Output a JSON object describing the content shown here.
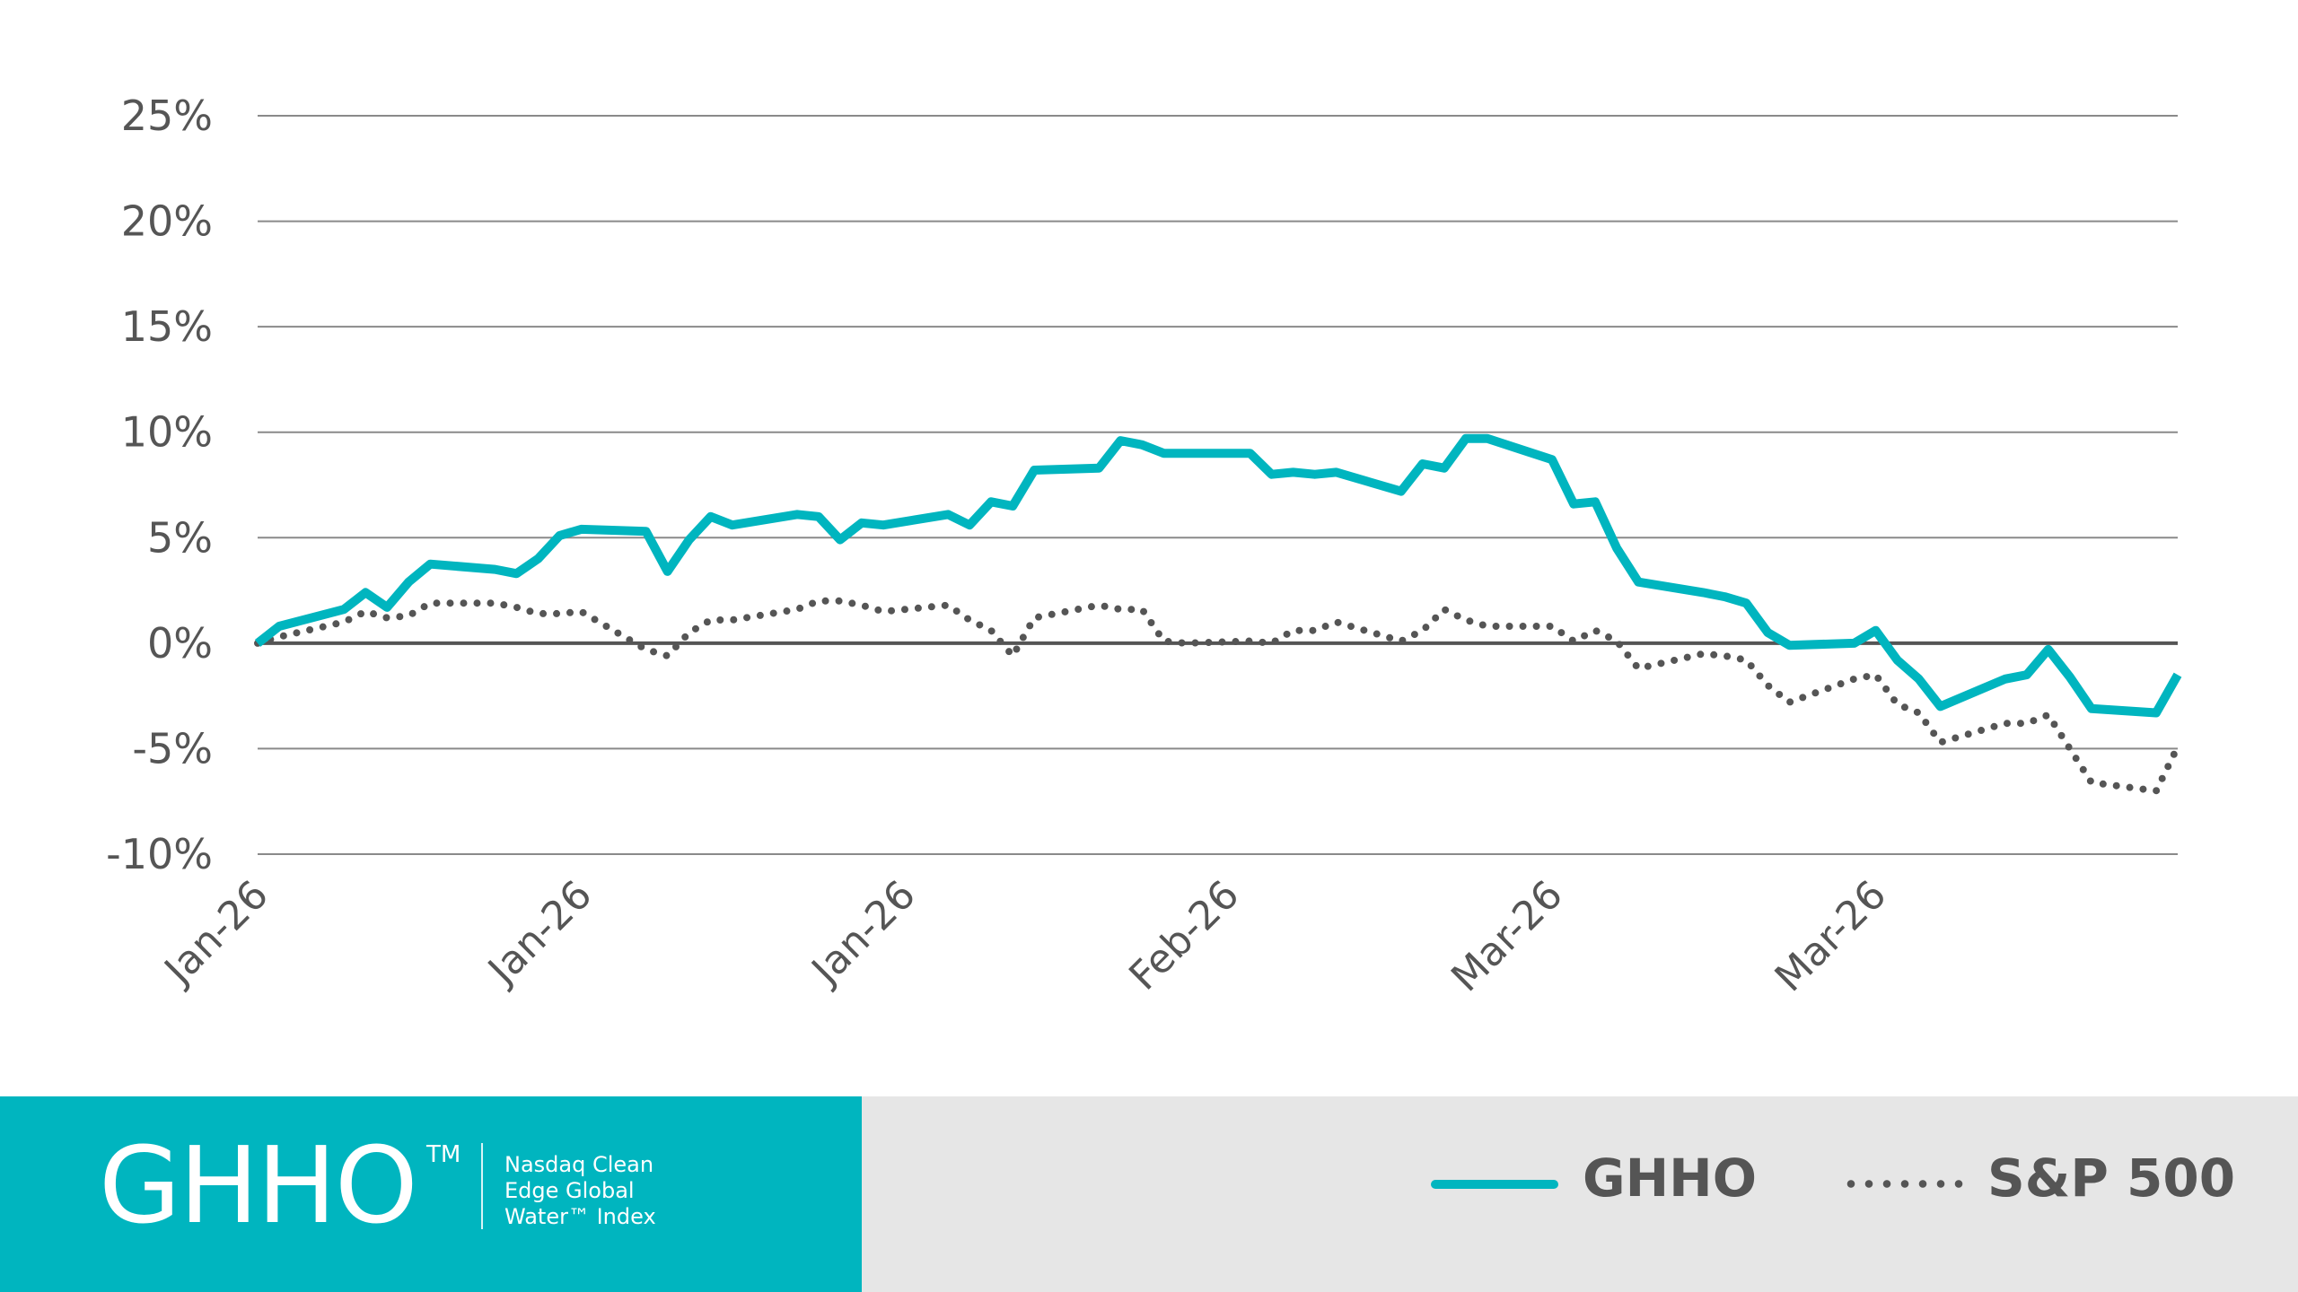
{
  "chart_data": {
    "type": "line",
    "title": "",
    "xlabel": "",
    "ylabel": "",
    "ylim": [
      -10,
      25
    ],
    "y_ticks": [
      25,
      20,
      15,
      10,
      5,
      0,
      -5,
      -10
    ],
    "y_tick_labels": [
      "25%",
      "20%",
      "15%",
      "10%",
      "5%",
      "0%",
      "-5%",
      "-10%"
    ],
    "x_range": [
      0,
      89
    ],
    "x_ticks": [
      0,
      15,
      30,
      45,
      60,
      75
    ],
    "x_tick_labels": [
      "Jan-26",
      "Jan-26",
      "Jan-26",
      "Feb-26",
      "Mar-26",
      "Mar-26"
    ],
    "grid": true,
    "legend": "bottom-right",
    "series": [
      {
        "name": "GHHO",
        "color": "#00B5BF",
        "style": "solid",
        "x": [
          0,
          1,
          4,
          5,
          6,
          7,
          8,
          11,
          12,
          13,
          14,
          15,
          18,
          19,
          20,
          21,
          22,
          25,
          26,
          27,
          28,
          29,
          32,
          33,
          34,
          35,
          36,
          39,
          40,
          41,
          42,
          43,
          46,
          47,
          48,
          49,
          50,
          53,
          54,
          55,
          56,
          57,
          60,
          61,
          62,
          63,
          64,
          67,
          68,
          69,
          70,
          71,
          74,
          75,
          76,
          77,
          78,
          81,
          82,
          83,
          84,
          85,
          88,
          89
        ],
        "values": [
          0,
          0.8,
          1.6,
          2.4,
          1.7,
          2.9,
          3.75,
          3.5,
          3.3,
          4.0,
          5.1,
          5.4,
          5.3,
          3.4,
          4.9,
          6.0,
          5.6,
          6.1,
          6.0,
          4.9,
          5.7,
          5.6,
          6.1,
          5.6,
          6.7,
          6.5,
          8.2,
          8.3,
          9.6,
          9.4,
          9.0,
          9.0,
          9.0,
          8.0,
          8.1,
          8.0,
          8.1,
          7.2,
          8.5,
          8.3,
          9.7,
          9.7,
          8.7,
          6.6,
          6.7,
          4.5,
          2.9,
          2.4,
          2.2,
          1.9,
          0.5,
          -0.1,
          0.0,
          0.6,
          -0.8,
          -1.7,
          -3.0,
          -1.7,
          -1.5,
          -0.3,
          -1.6,
          -3.1,
          -3.3,
          -1.5
        ]
      },
      {
        "name": "S&P 500",
        "color": "#555555",
        "style": "dotted",
        "x": [
          0,
          1,
          4,
          5,
          6,
          7,
          8,
          11,
          12,
          13,
          14,
          15,
          18,
          19,
          20,
          21,
          22,
          25,
          26,
          27,
          28,
          29,
          32,
          33,
          34,
          35,
          36,
          39,
          40,
          41,
          42,
          43,
          46,
          47,
          48,
          49,
          50,
          53,
          54,
          55,
          56,
          57,
          60,
          61,
          62,
          63,
          64,
          67,
          68,
          69,
          70,
          71,
          74,
          75,
          76,
          77,
          78,
          81,
          82,
          83,
          84,
          85,
          88,
          89
        ],
        "values": [
          0,
          0.3,
          1.0,
          1.5,
          1.2,
          1.3,
          1.9,
          1.9,
          1.7,
          1.4,
          1.4,
          1.5,
          -0.3,
          -0.6,
          0.5,
          1.1,
          1.1,
          1.6,
          2.0,
          2.0,
          1.8,
          1.5,
          1.8,
          1.1,
          0.6,
          -0.6,
          1.2,
          1.8,
          1.6,
          1.6,
          0.1,
          0.0,
          0.1,
          0.0,
          0.6,
          0.6,
          1.0,
          0.1,
          0.6,
          1.6,
          1.1,
          0.8,
          0.8,
          0.1,
          0.6,
          0.1,
          -1.2,
          -0.5,
          -0.6,
          -0.8,
          -2.0,
          -2.8,
          -1.7,
          -1.5,
          -2.9,
          -3.3,
          -4.7,
          -3.8,
          -3.8,
          -3.4,
          -5.0,
          -6.6,
          -7.0,
          -4.9
        ]
      }
    ]
  },
  "branding": {
    "ticker": "GHHO",
    "trademark": "TM",
    "index_name_lines": [
      "Nasdaq Clean",
      "Edge Global",
      "Water™ Index"
    ],
    "brand_color": "#00B5BF"
  },
  "legend": {
    "items": [
      {
        "label": "GHHO"
      },
      {
        "label": "S&P 500"
      }
    ]
  }
}
